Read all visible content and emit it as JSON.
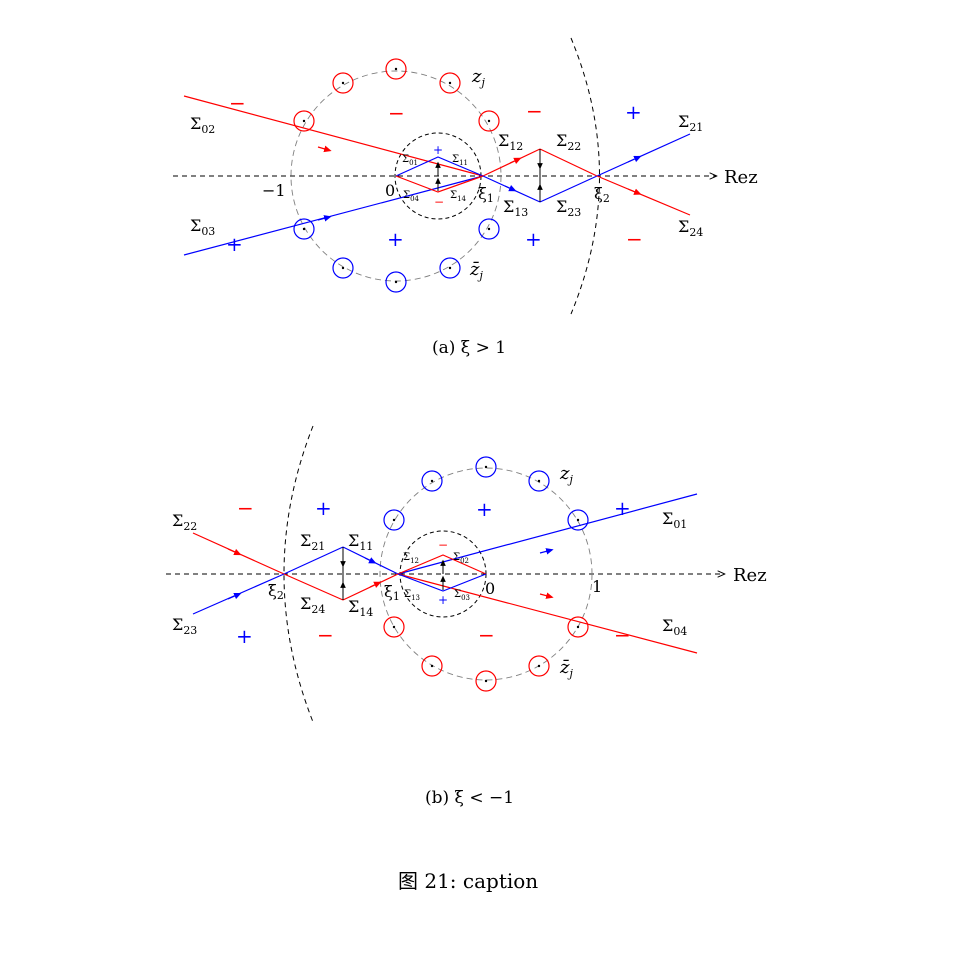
{
  "figure": {
    "caption": "图 21: caption",
    "colors": {
      "red": "#ff0000",
      "blue": "#0000ff",
      "grey": "#7f7f7f",
      "black": "#000000"
    }
  },
  "panel_a": {
    "caption": "(a) ξ > 1",
    "axis_label": "Rez",
    "tick_minus1": "−1",
    "tick_0": "0",
    "xi1": "ξ",
    "xi1_sub": "1",
    "xi2": "ξ",
    "xi2_sub": "2",
    "zj": "z",
    "zj_sub": "j",
    "zbarj": "z̄",
    "zbarj_sub": "j",
    "sigma": "Σ",
    "contours": {
      "s02": "02",
      "s03": "03",
      "s21": "21",
      "s24": "24",
      "s12": "12",
      "s22": "22",
      "s13": "13",
      "s23": "23",
      "s01": "01",
      "s11": "11",
      "s04": "04",
      "s14": "14"
    },
    "signs": {
      "minus": "−",
      "plus": "+"
    }
  },
  "panel_b": {
    "caption": "(b) ξ < −1",
    "axis_label": "Rez",
    "tick_1": "1",
    "tick_0": "0",
    "xi1": "ξ",
    "xi1_sub": "1",
    "xi2": "ξ",
    "xi2_sub": "2",
    "zj": "z",
    "zj_sub": "j",
    "zbarj": "z̄",
    "zbarj_sub": "j",
    "sigma": "Σ",
    "contours": {
      "s22": "22",
      "s23": "23",
      "s01": "01",
      "s04": "04",
      "s21": "21",
      "s11": "11",
      "s24": "24",
      "s14": "14",
      "s12": "12",
      "s02": "02",
      "s13": "13",
      "s03": "03"
    },
    "signs": {
      "minus": "−",
      "plus": "+"
    }
  }
}
